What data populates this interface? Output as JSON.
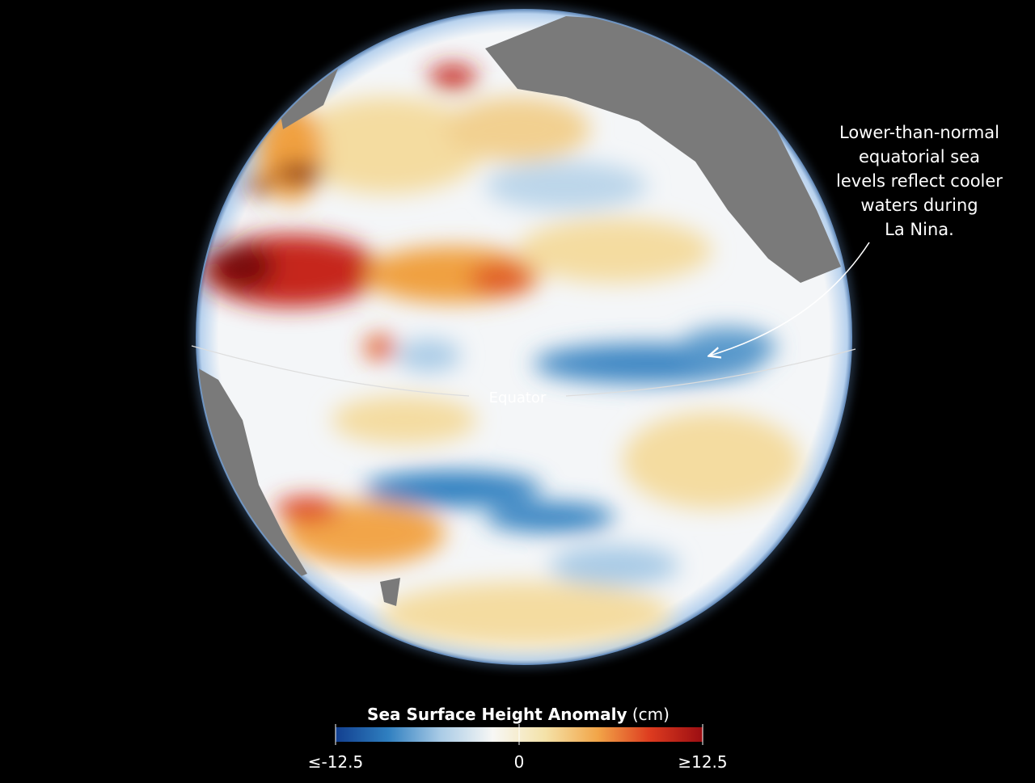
{
  "annotation": {
    "lines": [
      "Lower-than-normal",
      "equatorial sea",
      "levels reflect cooler",
      "waters during",
      "La Nina."
    ]
  },
  "equator_label": "Equator",
  "colorbar": {
    "title": "Sea Surface Height Anomaly",
    "unit": "(cm)",
    "range": [
      -12.5,
      12.5
    ],
    "ticks": [
      {
        "value": -12.5,
        "label": "≤-12.5"
      },
      0,
      {
        "value": 12.5,
        "label": "≥12.5"
      }
    ],
    "colors": [
      "#123f8f",
      "#2f7fc0",
      "#a9cbe6",
      "#f7f7f5",
      "#f4e2a8",
      "#f2a548",
      "#dd3b1f",
      "#9b0d12"
    ]
  }
}
